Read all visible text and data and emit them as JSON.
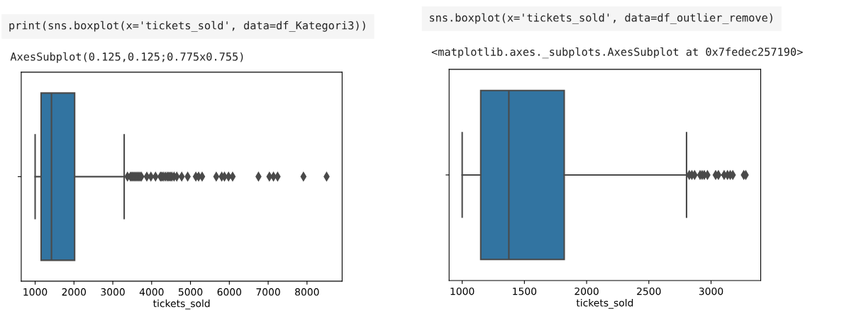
{
  "chart_data": [
    {
      "type": "box",
      "xlabel": "tickets_sold",
      "orientation": "horizontal",
      "categories": [
        null
      ],
      "color": "#3274a1",
      "marker": "diamond",
      "grid": false,
      "annotations": [
        "print(sns.boxplot(x='tickets_sold', data=df_Kategori3))",
        "AxesSubplot(0.125,0.125;0.775x0.755)"
      ],
      "boxes": [
        {
          "low": 1000,
          "q1": 1154,
          "median": 1421,
          "q3": 2017,
          "high": 3293,
          "outliers": [
            3378,
            3455,
            3490,
            3525,
            3560,
            3595,
            3630,
            3665,
            3700,
            3735,
            3876,
            3981,
            4100,
            4226,
            4260,
            4300,
            4350,
            4400,
            4440,
            4480,
            4520,
            4577,
            4647,
            4774,
            4928,
            5138,
            5209,
            5300,
            5664,
            5805,
            5875,
            5980,
            6085,
            6751,
            7032,
            7137,
            7243,
            7909,
            8505
          ]
        }
      ],
      "xlim": [
        642,
        8905
      ],
      "xticks": [
        1000,
        2000,
        3000,
        4000,
        5000,
        6000,
        7000,
        8000
      ]
    },
    {
      "type": "box",
      "xlabel": "tickets_sold",
      "orientation": "horizontal",
      "categories": [
        null
      ],
      "color": "#3274a1",
      "marker": "diamond",
      "grid": false,
      "annotations": [
        "sns.boxplot(x='tickets_sold', data=df_outlier_remove)",
        "<matplotlib.axes._subplots.AxesSubplot at 0x7fedec257190>"
      ],
      "boxes": [
        {
          "low": 1000,
          "q1": 1149,
          "median": 1375,
          "q3": 1820,
          "high": 2803,
          "outliers": [
            2825,
            2846,
            2868,
            2912,
            2928,
            2945,
            2971,
            3037,
            3059,
            3105,
            3132,
            3154,
            3175,
            3263,
            3279
          ]
        }
      ],
      "xlim": [
        895,
        3399
      ],
      "xticks": [
        1000,
        1500,
        2000,
        2500,
        3000
      ]
    }
  ]
}
